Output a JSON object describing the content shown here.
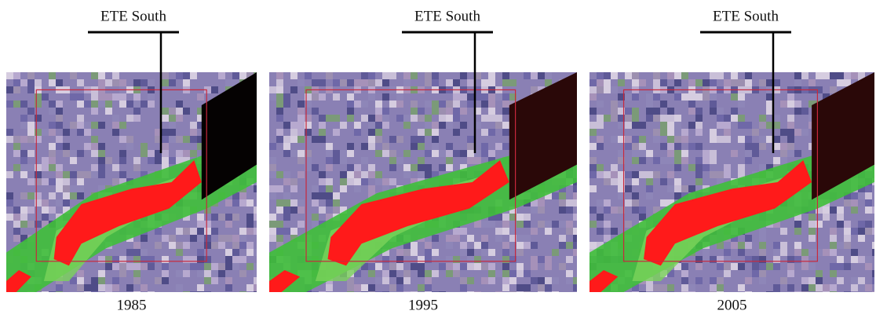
{
  "panels": [
    {
      "label": "ETE South",
      "year": "1985"
    },
    {
      "label": "ETE South",
      "year": "1995"
    },
    {
      "label": "ETE South",
      "year": "2005"
    }
  ]
}
